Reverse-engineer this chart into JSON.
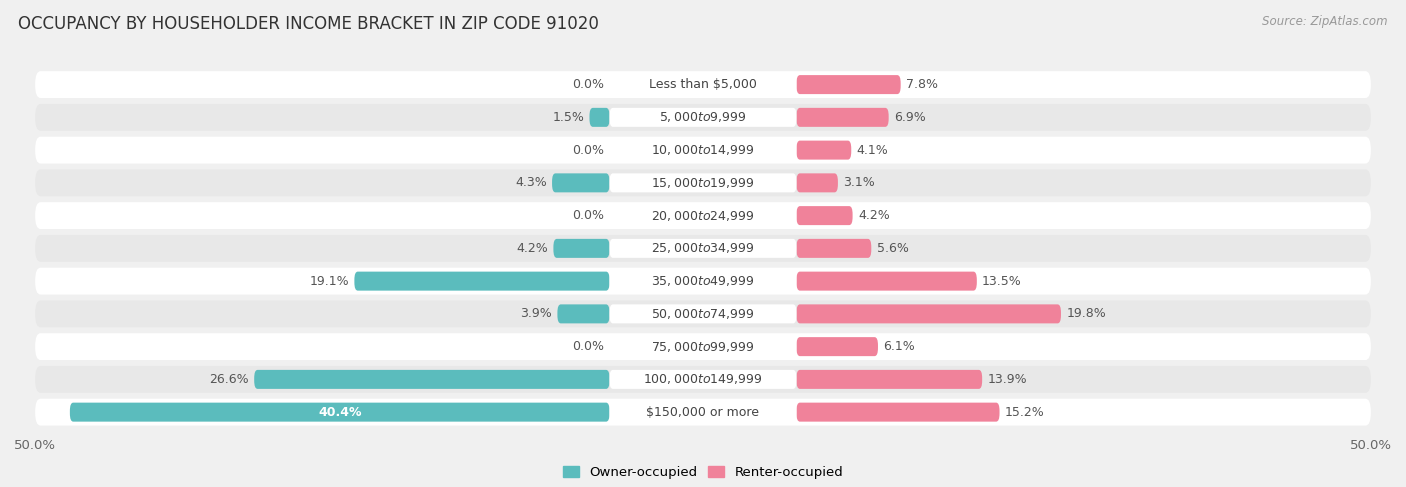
{
  "title": "OCCUPANCY BY HOUSEHOLDER INCOME BRACKET IN ZIP CODE 91020",
  "source": "Source: ZipAtlas.com",
  "categories": [
    "Less than $5,000",
    "$5,000 to $9,999",
    "$10,000 to $14,999",
    "$15,000 to $19,999",
    "$20,000 to $24,999",
    "$25,000 to $34,999",
    "$35,000 to $49,999",
    "$50,000 to $74,999",
    "$75,000 to $99,999",
    "$100,000 to $149,999",
    "$150,000 or more"
  ],
  "owner_values": [
    0.0,
    1.5,
    0.0,
    4.3,
    0.0,
    4.2,
    19.1,
    3.9,
    0.0,
    26.6,
    40.4
  ],
  "renter_values": [
    7.8,
    6.9,
    4.1,
    3.1,
    4.2,
    5.6,
    13.5,
    19.8,
    6.1,
    13.9,
    15.2
  ],
  "owner_color": "#5BBCBD",
  "renter_color": "#F0829A",
  "axis_max": 50.0,
  "bg_color": "#f0f0f0",
  "row_bg_color": "#ffffff",
  "row_alt_color": "#e8e8e8",
  "bar_height": 0.58,
  "label_fontsize": 9.0,
  "title_fontsize": 12,
  "source_fontsize": 8.5,
  "value_fontsize": 9.0
}
